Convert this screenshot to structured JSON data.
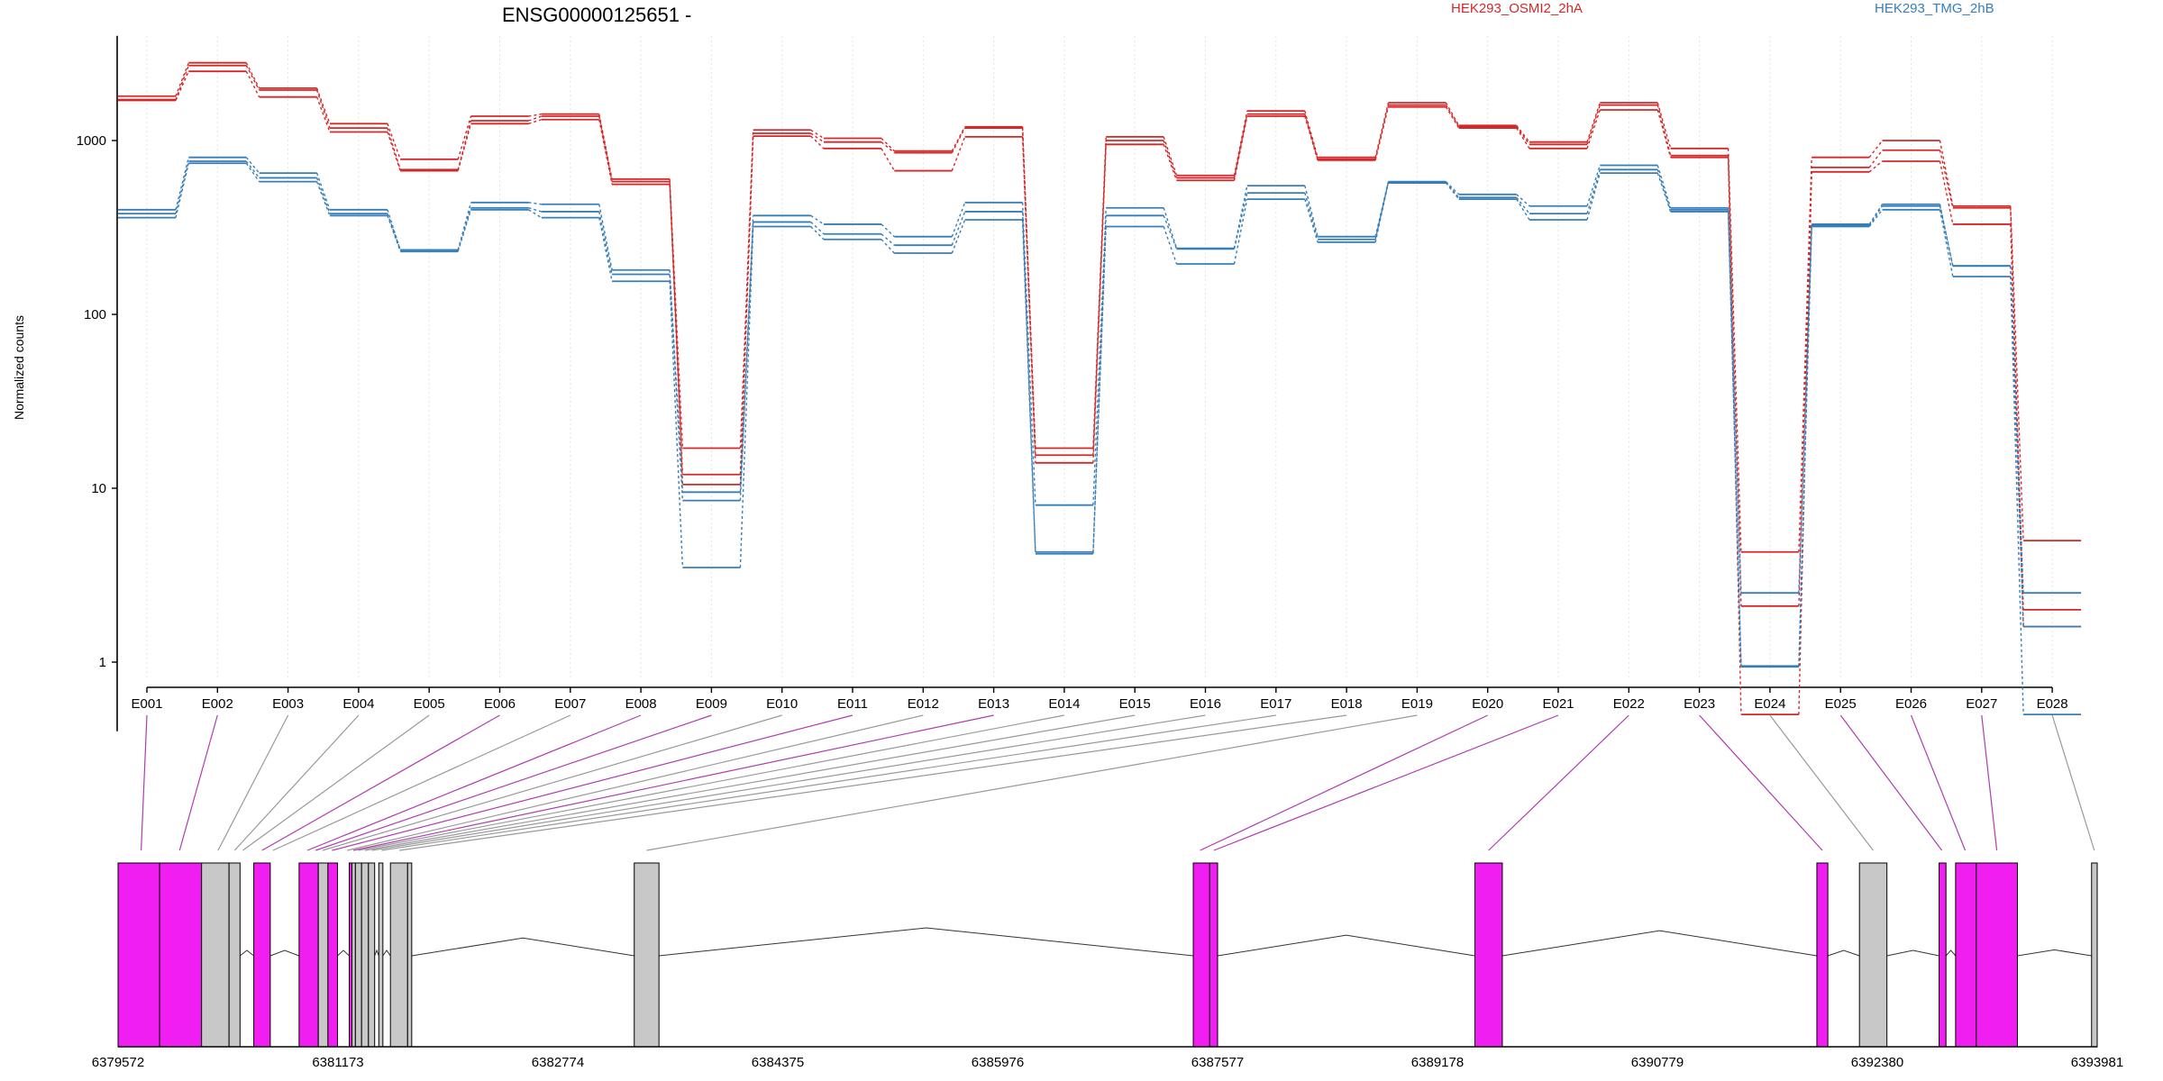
{
  "chart_data": {
    "type": "line",
    "title": "ENSG00000125651 -",
    "xlabel": "",
    "ylabel": "Normalized counts",
    "yscale": "log",
    "ylim": [
      0.4,
      4000
    ],
    "yticks": [
      1,
      10,
      100,
      1000
    ],
    "ytick_labels": [
      "1",
      "10",
      "100",
      "1000"
    ],
    "grid": "vertical dotted",
    "categories": [
      "E001",
      "E002",
      "E003",
      "E004",
      "E005",
      "E006",
      "E007",
      "E008",
      "E009",
      "E010",
      "E011",
      "E012",
      "E013",
      "E014",
      "E015",
      "E016",
      "E017",
      "E018",
      "E019",
      "E020",
      "E021",
      "E022",
      "E023",
      "E024",
      "E025",
      "E026",
      "E027",
      "E028"
    ],
    "legend": [
      {
        "label": "HEK293_OSMI2_2hA",
        "color": "#d62728",
        "position": "top-center"
      },
      {
        "label": "HEK293_TMG_2hB",
        "color": "#377eb8",
        "position": "top-right"
      }
    ],
    "series": [
      {
        "group": "HEK293_OSMI2_2hA",
        "color": "#d62728",
        "values": [
          1800,
          2800,
          2000,
          1250,
          780,
          1380,
          1420,
          600,
          17,
          1150,
          1030,
          870,
          1200,
          17,
          1050,
          630,
          1480,
          800,
          1650,
          1220,
          980,
          1650,
          900,
          4.3,
          800,
          1000,
          420,
          5.0
        ]
      },
      {
        "group": "HEK293_OSMI2_2hA",
        "color": "#d62728",
        "values": [
          1720,
          2700,
          1950,
          1180,
          680,
          1300,
          1380,
          580,
          12,
          1100,
          980,
          850,
          1180,
          15.5,
          1000,
          610,
          1420,
          780,
          1600,
          1200,
          950,
          1600,
          820,
          2.1,
          700,
          880,
          410,
          2.0
        ]
      },
      {
        "group": "HEK293_OSMI2_2hA",
        "color": "#d62728",
        "values": [
          1700,
          2500,
          1780,
          1120,
          670,
          1250,
          1320,
          560,
          10.5,
          1060,
          900,
          670,
          1050,
          14,
          950,
          590,
          1380,
          770,
          1560,
          1180,
          900,
          1500,
          800,
          0.5,
          660,
          760,
          330,
          1.6
        ]
      },
      {
        "group": "HEK293_TMG_2hB",
        "color": "#377eb8",
        "values": [
          400,
          800,
          650,
          400,
          235,
          440,
          430,
          180,
          9.5,
          370,
          330,
          280,
          440,
          8,
          410,
          240,
          550,
          280,
          580,
          490,
          420,
          720,
          410,
          2.5,
          330,
          430,
          190,
          2.5
        ]
      },
      {
        "group": "HEK293_TMG_2hB",
        "color": "#377eb8",
        "values": [
          380,
          760,
          610,
          380,
          235,
          410,
          390,
          170,
          8.5,
          340,
          290,
          250,
          390,
          4.3,
          370,
          238,
          500,
          270,
          575,
          470,
          380,
          680,
          400,
          0.95,
          325,
          420,
          190,
          1.6
        ]
      },
      {
        "group": "HEK293_TMG_2hB",
        "color": "#377eb8",
        "values": [
          360,
          740,
          580,
          370,
          230,
          400,
          360,
          155,
          3.5,
          320,
          270,
          225,
          350,
          4.2,
          320,
          195,
          460,
          260,
          570,
          460,
          350,
          650,
          390,
          0.94,
          320,
          400,
          165,
          0.5
        ]
      }
    ],
    "gene_model": {
      "coordinate_ticks": [
        "6379572",
        "6381173",
        "6382774",
        "6384375",
        "6385976",
        "6387577",
        "6389178",
        "6390779",
        "6392380",
        "6393981"
      ],
      "coordinate_range": [
        6379572,
        6393981
      ],
      "highlight_color": "#f01ef0",
      "other_color": "#c8c8c8",
      "exons": [
        {
          "id": "E001",
          "start": 6379572,
          "end": 6379875,
          "highlight": true
        },
        {
          "id": "E002",
          "start": 6379875,
          "end": 6380180,
          "highlight": true
        },
        {
          "id": "E003",
          "start": 6380180,
          "end": 6380380,
          "highlight": false
        },
        {
          "id": "E004",
          "start": 6380380,
          "end": 6380460,
          "highlight": false
        },
        {
          "id": "E005",
          "start": 6380560,
          "end": 6380680,
          "highlight": true
        },
        {
          "id": "E006",
          "start": 6380890,
          "end": 6381030,
          "highlight": true
        },
        {
          "id": "E007",
          "start": 6381030,
          "end": 6381100,
          "highlight": false
        },
        {
          "id": "E008",
          "start": 6381100,
          "end": 6381170,
          "highlight": true
        },
        {
          "id": "E009",
          "start": 6381255,
          "end": 6381275,
          "highlight": true
        },
        {
          "id": "E010",
          "start": 6381275,
          "end": 6381300,
          "highlight": false
        },
        {
          "id": "E011",
          "start": 6381300,
          "end": 6381345,
          "highlight": false
        },
        {
          "id": "E012",
          "start": 6381345,
          "end": 6381395,
          "highlight": false
        },
        {
          "id": "E013",
          "start": 6381395,
          "end": 6381440,
          "highlight": false
        },
        {
          "id": "E014",
          "start": 6381470,
          "end": 6381500,
          "highlight": false
        },
        {
          "id": "E015",
          "start": 6381555,
          "end": 6381680,
          "highlight": false
        },
        {
          "id": "E016",
          "start": 6381680,
          "end": 6381710,
          "highlight": false
        },
        {
          "id": "E017",
          "start": 6383330,
          "end": 6383510,
          "highlight": false
        },
        {
          "id": "E018",
          "start": 6387400,
          "end": 6387520,
          "highlight": true
        },
        {
          "id": "E019",
          "start": 6387520,
          "end": 6387577,
          "highlight": true
        },
        {
          "id": "E020",
          "start": 6389450,
          "end": 6389650,
          "highlight": true
        },
        {
          "id": "E021",
          "start": 6391940,
          "end": 6392020,
          "highlight": true
        },
        {
          "id": "E022",
          "start": 6392250,
          "end": 6392450,
          "highlight": false
        },
        {
          "id": "E023",
          "start": 6392830,
          "end": 6392880,
          "highlight": true
        },
        {
          "id": "E024",
          "start": 6392950,
          "end": 6393100,
          "highlight": true
        },
        {
          "id": "E025",
          "start": 6393100,
          "end": 6393400,
          "highlight": true
        },
        {
          "id": "E026",
          "start": 6393940,
          "end": 6393981,
          "highlight": false
        }
      ],
      "connectors": [
        {
          "exon": "E001",
          "x": 6379740,
          "highlight": true
        },
        {
          "exon": "E002",
          "x": 6380020,
          "highlight": true
        },
        {
          "exon": "E003",
          "x": 6380300,
          "highlight": false
        },
        {
          "exon": "E004",
          "x": 6380420,
          "highlight": false
        },
        {
          "exon": "E005",
          "x": 6380480,
          "highlight": false
        },
        {
          "exon": "E006",
          "x": 6380620,
          "highlight": true
        },
        {
          "exon": "E007",
          "x": 6380700,
          "highlight": false
        },
        {
          "exon": "E008",
          "x": 6380950,
          "highlight": true
        },
        {
          "exon": "E009",
          "x": 6381010,
          "highlight": true
        },
        {
          "exon": "E010",
          "x": 6381060,
          "highlight": false
        },
        {
          "exon": "E011",
          "x": 6381130,
          "highlight": true
        },
        {
          "exon": "E012",
          "x": 6381240,
          "highlight": false
        },
        {
          "exon": "E013",
          "x": 6381285,
          "highlight": true
        },
        {
          "exon": "E014",
          "x": 6381320,
          "highlight": false
        },
        {
          "exon": "E015",
          "x": 6381370,
          "highlight": false
        },
        {
          "exon": "E016",
          "x": 6381420,
          "highlight": false
        },
        {
          "exon": "E017",
          "x": 6381490,
          "highlight": false
        },
        {
          "exon": "E018",
          "x": 6381620,
          "highlight": false
        },
        {
          "exon": "E019",
          "x": 6383420,
          "highlight": false
        },
        {
          "exon": "E020",
          "x": 6387450,
          "highlight": true
        },
        {
          "exon": "E021",
          "x": 6387550,
          "highlight": true
        },
        {
          "exon": "E022",
          "x": 6389550,
          "highlight": true
        },
        {
          "exon": "E023",
          "x": 6391980,
          "highlight": true
        },
        {
          "exon": "E024",
          "x": 6392350,
          "highlight": false
        },
        {
          "exon": "E025",
          "x": 6392850,
          "highlight": true
        },
        {
          "exon": "E026",
          "x": 6393020,
          "highlight": true
        },
        {
          "exon": "E027",
          "x": 6393250,
          "highlight": true
        },
        {
          "exon": "E028",
          "x": 6393960,
          "highlight": false
        }
      ]
    }
  }
}
